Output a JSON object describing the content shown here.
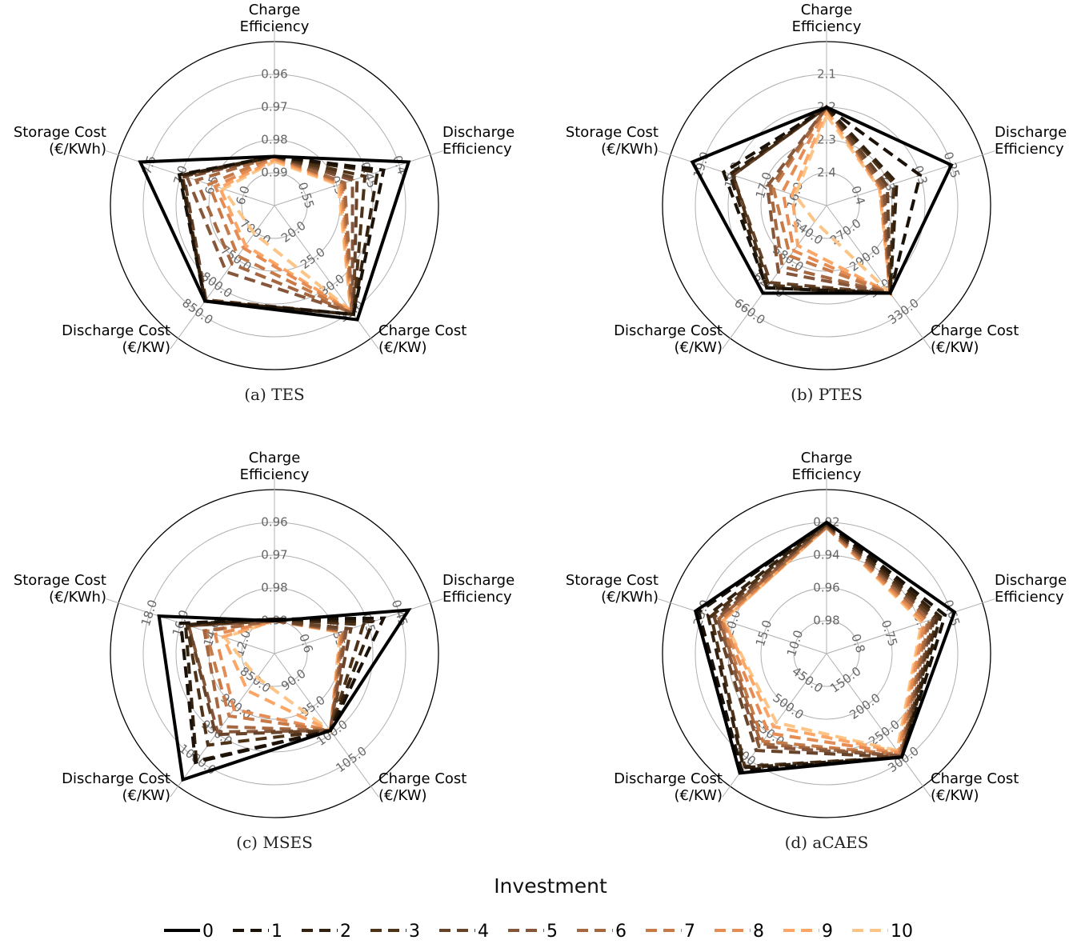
{
  "legend": {
    "title": "Investment",
    "entries": [
      {
        "label": "0",
        "color": "#000000",
        "dashed": false
      },
      {
        "label": "1",
        "color": "#1a1108",
        "dashed": true
      },
      {
        "label": "2",
        "color": "#33210f",
        "dashed": true
      },
      {
        "label": "3",
        "color": "#4d3218",
        "dashed": true
      },
      {
        "label": "4",
        "color": "#67432a",
        "dashed": true
      },
      {
        "label": "5",
        "color": "#86563a",
        "dashed": true
      },
      {
        "label": "6",
        "color": "#a5673f",
        "dashed": true
      },
      {
        "label": "7",
        "color": "#c57a48",
        "dashed": true
      },
      {
        "label": "8",
        "color": "#e58c55",
        "dashed": true
      },
      {
        "label": "9",
        "color": "#fba666",
        "dashed": true
      },
      {
        "label": "10",
        "color": "#fcc587",
        "dashed": true
      }
    ]
  },
  "chart_data": [
    {
      "type": "radar",
      "caption": "(a) TES",
      "axes": [
        {
          "label_lines": [
            "Charge",
            "Efficiency"
          ],
          "ticks": [
            "0.99",
            "0.98",
            "0.97",
            "0.96"
          ]
        },
        {
          "label_lines": [
            "Discharge",
            "Efficiency"
          ],
          "ticks": [
            "0.55",
            "0.5",
            "0.45",
            "0.4"
          ]
        },
        {
          "label_lines": [
            "Charge Cost",
            "(€/KW)"
          ],
          "ticks": [
            "20.0",
            "25.0",
            "30.0",
            "35.0"
          ]
        },
        {
          "label_lines": [
            "Discharge Cost",
            "(€/KW)"
          ],
          "ticks": [
            "700.0",
            "750.0",
            "800.0",
            "850.0"
          ]
        },
        {
          "label_lines": [
            "Storage Cost",
            "(€/KWh)"
          ],
          "ticks": [
            "6.0",
            "6.5",
            "7.0",
            "7.5"
          ]
        }
      ],
      "series": [
        {
          "investment": "0",
          "values": [
            0.3,
            0.86,
            0.86,
            0.72,
            0.86
          ]
        },
        {
          "investment": "1",
          "values": [
            0.3,
            0.7,
            0.82,
            0.72,
            0.61
          ]
        },
        {
          "investment": "2",
          "values": [
            0.3,
            0.66,
            0.82,
            0.72,
            0.6
          ]
        },
        {
          "investment": "3",
          "values": [
            0.3,
            0.58,
            0.82,
            0.72,
            0.59
          ]
        },
        {
          "investment": "4",
          "values": [
            0.3,
            0.53,
            0.82,
            0.71,
            0.58
          ]
        },
        {
          "investment": "5",
          "values": [
            0.3,
            0.5,
            0.81,
            0.5,
            0.56
          ]
        },
        {
          "investment": "6",
          "values": [
            0.3,
            0.45,
            0.81,
            0.44,
            0.5
          ]
        },
        {
          "investment": "7",
          "values": [
            0.3,
            0.44,
            0.8,
            0.38,
            0.42
          ]
        },
        {
          "investment": "8",
          "values": [
            0.29,
            0.43,
            0.8,
            0.32,
            0.38
          ]
        },
        {
          "investment": "9",
          "values": [
            0.28,
            0.42,
            0.79,
            0.3,
            0.35
          ]
        },
        {
          "investment": "10",
          "values": [
            0.27,
            0.41,
            0.79,
            0.21,
            0.33
          ]
        }
      ]
    },
    {
      "type": "radar",
      "caption": "(b) PTES",
      "axes": [
        {
          "label_lines": [
            "Charge",
            "Efficiency"
          ],
          "ticks": [
            "2.4",
            "2.3",
            "2.2",
            "2.1"
          ]
        },
        {
          "label_lines": [
            "Discharge",
            "Efficiency"
          ],
          "ticks": [
            "0.4",
            "0.35",
            "0.3",
            "0.25"
          ]
        },
        {
          "label_lines": [
            "Charge Cost",
            "(€/KW)"
          ],
          "ticks": [
            "270.0",
            "290.0",
            "310.0",
            "330.0"
          ]
        },
        {
          "label_lines": [
            "Discharge Cost",
            "(€/KW)"
          ],
          "ticks": [
            "540.0",
            "580.0",
            "620.0",
            "660.0"
          ]
        },
        {
          "label_lines": [
            "Storage Cost",
            "(€/KWh)"
          ],
          "ticks": [
            "16.0",
            "17.0",
            "18.0",
            "19.0"
          ]
        }
      ],
      "series": [
        {
          "investment": "0",
          "values": [
            0.6,
            0.8,
            0.66,
            0.66,
            0.86
          ]
        },
        {
          "investment": "1",
          "values": [
            0.6,
            0.6,
            0.66,
            0.62,
            0.66
          ]
        },
        {
          "investment": "2",
          "values": [
            0.6,
            0.45,
            0.66,
            0.62,
            0.62
          ]
        },
        {
          "investment": "3",
          "values": [
            0.6,
            0.43,
            0.66,
            0.6,
            0.6
          ]
        },
        {
          "investment": "4",
          "values": [
            0.6,
            0.39,
            0.66,
            0.58,
            0.6
          ]
        },
        {
          "investment": "5",
          "values": [
            0.6,
            0.37,
            0.66,
            0.5,
            0.38
          ]
        },
        {
          "investment": "6",
          "values": [
            0.6,
            0.36,
            0.66,
            0.46,
            0.36
          ]
        },
        {
          "investment": "7",
          "values": [
            0.6,
            0.35,
            0.66,
            0.38,
            0.34
          ]
        },
        {
          "investment": "8",
          "values": [
            0.6,
            0.35,
            0.66,
            0.34,
            0.28
          ]
        },
        {
          "investment": "9",
          "values": [
            0.58,
            0.34,
            0.66,
            0.3,
            0.22
          ]
        },
        {
          "investment": "10",
          "values": [
            0.55,
            0.34,
            0.66,
            0.12,
            0.2
          ]
        }
      ]
    },
    {
      "type": "radar",
      "caption": "(c) MSES",
      "axes": [
        {
          "label_lines": [
            "Charge",
            "Efficiency"
          ],
          "ticks": [
            "0.99",
            "0.98",
            "0.97",
            "0.96"
          ]
        },
        {
          "label_lines": [
            "Discharge",
            "Efficiency"
          ],
          "ticks": [
            "0.6",
            "0.55",
            "0.5",
            "0.45"
          ]
        },
        {
          "label_lines": [
            "Charge Cost",
            "(€/KW)"
          ],
          "ticks": [
            "90.0",
            "95.0",
            "100.0",
            "105.0"
          ]
        },
        {
          "label_lines": [
            "Discharge Cost",
            "(€/KW)"
          ],
          "ticks": [
            "850.0",
            "900.0",
            "950.0",
            "1000.0"
          ]
        },
        {
          "label_lines": [
            "Storage Cost",
            "(€/KWh)"
          ],
          "ticks": [
            "12.0",
            "14.0",
            "16.0",
            "18.0"
          ]
        }
      ],
      "series": [
        {
          "investment": "0",
          "values": [
            0.2,
            0.86,
            0.58,
            0.95,
            0.74
          ]
        },
        {
          "investment": "1",
          "values": [
            0.21,
            0.7,
            0.58,
            0.82,
            0.6
          ]
        },
        {
          "investment": "2",
          "values": [
            0.21,
            0.63,
            0.58,
            0.81,
            0.57
          ]
        },
        {
          "investment": "3",
          "values": [
            0.21,
            0.57,
            0.58,
            0.69,
            0.56
          ]
        },
        {
          "investment": "4",
          "values": [
            0.2,
            0.49,
            0.58,
            0.61,
            0.55
          ]
        },
        {
          "investment": "5",
          "values": [
            0.2,
            0.46,
            0.58,
            0.59,
            0.55
          ]
        },
        {
          "investment": "6",
          "values": [
            0.2,
            0.45,
            0.58,
            0.55,
            0.45
          ]
        },
        {
          "investment": "7",
          "values": [
            0.2,
            0.44,
            0.58,
            0.47,
            0.44
          ]
        },
        {
          "investment": "8",
          "values": [
            0.2,
            0.43,
            0.58,
            0.42,
            0.38
          ]
        },
        {
          "investment": "9",
          "values": [
            0.2,
            0.43,
            0.58,
            0.28,
            0.33
          ]
        },
        {
          "investment": "10",
          "values": [
            0.2,
            0.42,
            0.58,
            0.18,
            0.32
          ]
        }
      ]
    },
    {
      "type": "radar",
      "caption": "(d) aCAES",
      "axes": [
        {
          "label_lines": [
            "Charge",
            "Efficiency"
          ],
          "ticks": [
            "0.98",
            "0.96",
            "0.94",
            "0.92"
          ]
        },
        {
          "label_lines": [
            "Discharge",
            "Efficiency"
          ],
          "ticks": [
            "0.8",
            "0.75",
            "0.7",
            "0.65"
          ]
        },
        {
          "label_lines": [
            "Charge Cost",
            "(€/KW)"
          ],
          "ticks": [
            "150.0",
            "200.0",
            "250.0",
            "300.0"
          ]
        },
        {
          "label_lines": [
            "Discharge Cost",
            "(€/KW)"
          ],
          "ticks": [
            "450.0",
            "500.0",
            "550.0",
            "600.0"
          ]
        },
        {
          "label_lines": [
            "Storage Cost",
            "(€/KWh)"
          ],
          "ticks": [
            "10.0",
            "15.0",
            "20.0",
            "25.0"
          ]
        }
      ],
      "series": [
        {
          "investment": "0",
          "values": [
            0.8,
            0.82,
            0.78,
            0.9,
            0.84
          ]
        },
        {
          "investment": "1",
          "values": [
            0.8,
            0.76,
            0.78,
            0.88,
            0.82
          ]
        },
        {
          "investment": "2",
          "values": [
            0.8,
            0.73,
            0.78,
            0.86,
            0.76
          ]
        },
        {
          "investment": "3",
          "values": [
            0.79,
            0.71,
            0.78,
            0.85,
            0.74
          ]
        },
        {
          "investment": "4",
          "values": [
            0.79,
            0.69,
            0.78,
            0.73,
            0.72
          ]
        },
        {
          "investment": "5",
          "values": [
            0.78,
            0.68,
            0.77,
            0.7,
            0.7
          ]
        },
        {
          "investment": "6",
          "values": [
            0.78,
            0.66,
            0.77,
            0.68,
            0.69
          ]
        },
        {
          "investment": "7",
          "values": [
            0.77,
            0.65,
            0.76,
            0.66,
            0.68
          ]
        },
        {
          "investment": "8",
          "values": [
            0.77,
            0.63,
            0.75,
            0.6,
            0.67
          ]
        },
        {
          "investment": "9",
          "values": [
            0.77,
            0.62,
            0.74,
            0.55,
            0.66
          ]
        },
        {
          "investment": "10",
          "values": [
            0.77,
            0.61,
            0.73,
            0.52,
            0.66
          ]
        }
      ]
    }
  ]
}
